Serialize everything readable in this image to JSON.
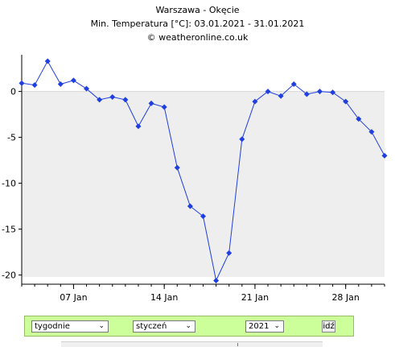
{
  "header": {
    "line1": "Warszawa - Okęcie",
    "line2": "Min. Temperatura [°C]: 03.01.2021 - 31.01.2021",
    "line3": "© weatheronline.co.uk"
  },
  "chart_data": {
    "type": "line",
    "xlabel": "",
    "ylabel": "",
    "x": [
      3,
      4,
      5,
      6,
      7,
      8,
      9,
      10,
      11,
      12,
      13,
      14,
      15,
      16,
      17,
      18,
      19,
      20,
      21,
      22,
      23,
      24,
      25,
      26,
      27,
      28,
      29,
      30,
      31
    ],
    "xlim": [
      3,
      31
    ],
    "x_ticks": [
      7,
      14,
      21,
      28
    ],
    "x_tick_labels": [
      "07 Jan",
      "14 Jan",
      "21 Jan",
      "28 Jan"
    ],
    "series": [
      {
        "values": [
          0.9,
          0.7,
          3.3,
          0.8,
          1.2,
          0.3,
          -0.9,
          -0.6,
          -0.9,
          -3.8,
          -1.3,
          -1.7,
          -8.3,
          -12.5,
          -13.6,
          -20.6,
          -17.6,
          -5.2,
          -1.1,
          0.0,
          -0.5,
          0.8,
          -0.3,
          0.0,
          -0.1,
          -1.1,
          -3.0,
          -4.4,
          -7.0
        ],
        "color": "#1f3fe0"
      }
    ],
    "ylim": [
      -21.0,
      4.0
    ],
    "y_ticks": [
      0,
      -5,
      -10,
      -15,
      -20
    ],
    "y_tick_labels": [
      "0",
      "-5",
      "-10",
      "-15",
      "-20"
    ],
    "shade_below": 0,
    "colors": {
      "plot_bg": "#ffffff",
      "shade": "#eeeeee",
      "line": "#1f3fe0",
      "axis": "#000000"
    }
  },
  "controls": {
    "period": "tygodnie",
    "month": "styczeń",
    "year": "2021",
    "go": "idź",
    "arrow": "⌄"
  },
  "colors": {
    "controls_bg": "#ccff99"
  }
}
